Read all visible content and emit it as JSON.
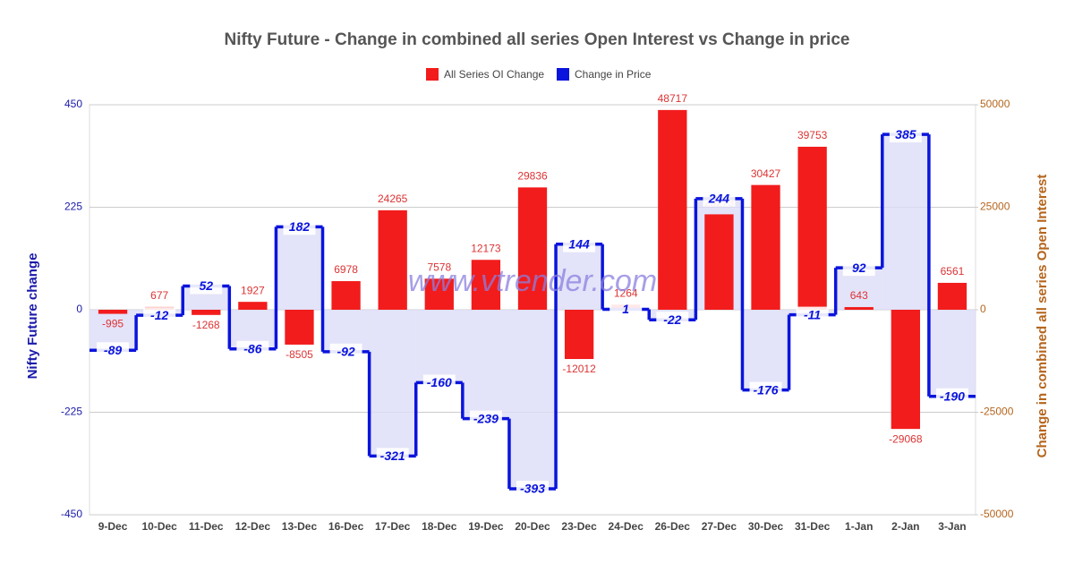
{
  "chart_data": {
    "type": "bar-step",
    "title": "Nifty Future - Change in combined all series Open Interest vs Change in price",
    "y_label": "Nifty Future change",
    "y2_label": "Change in combined all series Open Interest",
    "annotation": "www.vtrender.com",
    "categories": [
      "9-Dec",
      "10-Dec",
      "11-Dec",
      "12-Dec",
      "13-Dec",
      "16-Dec",
      "17-Dec",
      "18-Dec",
      "19-Dec",
      "20-Dec",
      "23-Dec",
      "24-Dec",
      "26-Dec",
      "27-Dec",
      "30-Dec",
      "31-Dec",
      "1-Jan",
      "2-Jan",
      "3-Jan"
    ],
    "series": [
      {
        "name": "All Series OI Change",
        "color": "#f21c1c",
        "axis": "y2",
        "values": [
          -995,
          677,
          -1268,
          1927,
          -8505,
          6978,
          24265,
          7578,
          12173,
          29836,
          -12012,
          1264,
          48717,
          23273,
          30427,
          39753,
          643,
          -29068,
          6561
        ]
      },
      {
        "name": "Change in Price",
        "color": "#0a14dc",
        "values": [
          -89,
          -12,
          52,
          -86,
          182,
          -92,
          -321,
          -160,
          -239,
          -393,
          144,
          1,
          -22,
          244,
          -176,
          -11,
          92,
          385,
          -190
        ]
      }
    ],
    "ylim": [
      -450,
      450
    ],
    "yticks": [
      -450,
      -225,
      0,
      225,
      450
    ],
    "y2lim": [
      -50000,
      50000
    ],
    "y2ticks": [
      -50000,
      -25000,
      0,
      25000,
      50000
    ],
    "grid": true,
    "legend": "top"
  }
}
